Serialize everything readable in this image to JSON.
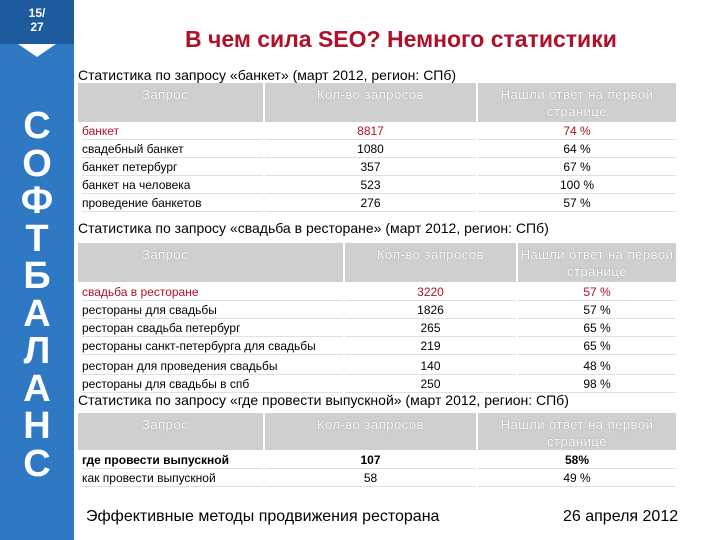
{
  "sidebar": {
    "slide_number": [
      "15/",
      "27"
    ],
    "brand_letters": [
      "С",
      "О",
      "Ф",
      "Т",
      "Б",
      "А",
      "Л",
      "А",
      "Н",
      "С"
    ]
  },
  "title": "В чем сила SEO? Немного статистики",
  "tables": [
    {
      "caption": "Статистика по запросу «банкет» (март 2012, регион: СПб)",
      "columns": [
        "Запрос",
        "Кол-во запросов",
        "Нашли ответ на первой странице"
      ],
      "rows": [
        [
          "банкет",
          "8817",
          "74 %"
        ],
        [
          "свадебный банкет",
          "1080",
          "64 %"
        ],
        [
          "банкет петербург",
          "357",
          "67 %"
        ],
        [
          "банкет на человека",
          "523",
          "100 %"
        ],
        [
          "проведение банкетов",
          "276",
          "57 %"
        ]
      ]
    },
    {
      "caption": "Статистика по запросу «свадьба в ресторане» (март 2012, регион: СПб)",
      "columns": [
        "Запрос",
        "Кол-во запросов",
        "Нашли ответ на первой странице"
      ],
      "rows": [
        [
          "свадьба в ресторане",
          "3220",
          "57 %"
        ],
        [
          "рестораны для свадьбы",
          "1826",
          "57 %"
        ],
        [
          "ресторан свадьба петербург",
          "265",
          "65 %"
        ],
        [
          "рестораны санкт-петербурга для свадьбы",
          "219",
          "65 %"
        ],
        [
          "ресторан для проведения свадьбы",
          "140",
          "48 %"
        ],
        [
          "рестораны для свадьбы в спб",
          "250",
          "98 %"
        ]
      ]
    },
    {
      "caption": "Статистика по запросу «где провести выпускной» (март 2012, регион: СПб)",
      "columns": [
        "Запрос",
        "Кол-во запросов",
        "Нашли ответ на первой странице"
      ],
      "rows": [
        [
          "где провести выпускной",
          "107",
          "58%"
        ],
        [
          "как провести выпускной",
          "58",
          "49 %"
        ]
      ]
    }
  ],
  "footer": {
    "left": "Эффективные методы продвижения ресторана",
    "right": "26 апреля 2012"
  }
}
